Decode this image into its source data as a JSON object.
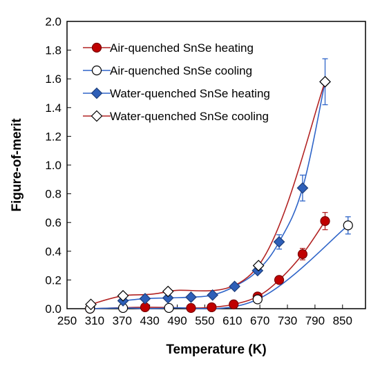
{
  "chart_data": {
    "type": "scatter",
    "title": "",
    "xlabel": "Temperature (K)",
    "ylabel": "Figure-of-merit",
    "xlim": [
      250,
      900
    ],
    "ylim": [
      0.0,
      2.0
    ],
    "xticks": [
      "250",
      "310",
      "370",
      "430",
      "490",
      "550",
      "610",
      "670",
      "730",
      "790",
      "850"
    ],
    "yticks": [
      "0.0",
      "0.2",
      "0.4",
      "0.6",
      "0.8",
      "1.0",
      "1.2",
      "1.4",
      "1.6",
      "1.8",
      "2.0"
    ],
    "grid": false,
    "legend_position": "top-left",
    "series": [
      {
        "name": "Air-quenched SnSe heating",
        "marker": "circle",
        "fill": "#c00000",
        "stroke": "#7a0000",
        "line_color": "#b22222",
        "x": [
          300,
          420,
          520,
          565,
          613,
          665,
          712,
          763,
          812
        ],
        "y": [
          0.0,
          0.01,
          0.005,
          0.01,
          0.03,
          0.085,
          0.2,
          0.38,
          0.61
        ],
        "err": [
          0,
          0,
          0,
          0,
          0,
          0,
          0,
          0.04,
          0.06
        ]
      },
      {
        "name": "Air-quenched SnSe cooling",
        "marker": "circle",
        "fill": "#ffffff",
        "stroke": "#000000",
        "line_color": "#2e64c8",
        "x": [
          300,
          372,
          472,
          665,
          862
        ],
        "y": [
          0.0,
          0.005,
          0.005,
          0.065,
          0.58
        ],
        "err": [
          0,
          0,
          0,
          0,
          0.06
        ]
      },
      {
        "name": "Water-quenched SnSe heating",
        "marker": "diamond",
        "fill": "#2e5fb8",
        "stroke": "#1c3d7a",
        "line_color": "#2e64c8",
        "x": [
          372,
          420,
          470,
          520,
          567,
          615,
          665,
          712,
          763,
          812
        ],
        "y": [
          0.055,
          0.07,
          0.075,
          0.08,
          0.095,
          0.155,
          0.265,
          0.465,
          0.84,
          1.58
        ],
        "err": [
          0,
          0,
          0,
          0,
          0,
          0,
          0,
          0.05,
          0.09,
          0.16
        ]
      },
      {
        "name": "Water-quenched SnSe cooling",
        "marker": "diamond",
        "fill": "#ffffff",
        "stroke": "#000000",
        "line_color": "#b22222",
        "x": [
          302,
          372,
          470,
          667,
          812
        ],
        "y": [
          0.03,
          0.09,
          0.12,
          0.3,
          1.58
        ],
        "err": [
          0,
          0,
          0,
          0,
          0
        ]
      }
    ]
  }
}
